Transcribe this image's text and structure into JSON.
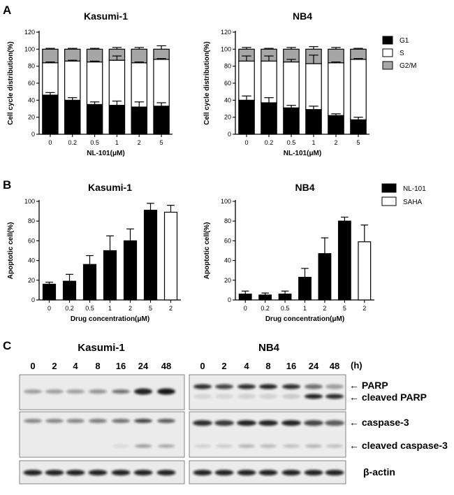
{
  "panels": {
    "a": "A",
    "b": "B",
    "c": "C"
  },
  "chart_data": [
    {
      "type": "bar",
      "stacked": true,
      "title": "Kasumi-1",
      "xlabel": "NL-101(μM)",
      "ylabel": "Cell cycle distribution(%)",
      "categories": [
        "0",
        "0.2",
        "0.5",
        "1",
        "2",
        "5"
      ],
      "ylim": [
        0,
        120
      ],
      "yticks": [
        "0",
        "20",
        "40",
        "60",
        "80",
        "100",
        "120"
      ],
      "series": [
        {
          "name": "G1",
          "values": [
            46,
            40,
            35,
            34,
            32,
            33
          ],
          "err": [
            3,
            3,
            3,
            5,
            6,
            4
          ],
          "color": "#000000"
        },
        {
          "name": "S",
          "values": [
            38,
            46,
            50,
            53,
            52,
            55
          ],
          "err": [
            1,
            1,
            1,
            5,
            1,
            1
          ],
          "color": "#ffffff"
        },
        {
          "name": "G2/M",
          "values": [
            16,
            14,
            15,
            13,
            16,
            12
          ],
          "err": [
            1,
            1,
            1,
            2,
            2,
            4
          ],
          "color": "#a6a6a6"
        }
      ]
    },
    {
      "type": "bar",
      "stacked": true,
      "title": "NB4",
      "xlabel": "NL-101(μM)",
      "ylabel": "Cell cycle distribution(%)",
      "categories": [
        "0",
        "0.2",
        "0.5",
        "1",
        "2",
        "5"
      ],
      "ylim": [
        0,
        120
      ],
      "yticks": [
        "0",
        "20",
        "40",
        "60",
        "80",
        "100",
        "120"
      ],
      "legend": "right",
      "series": [
        {
          "name": "G1",
          "values": [
            40,
            37,
            31,
            29,
            22,
            17
          ],
          "err": [
            5,
            6,
            3,
            4,
            2,
            3
          ],
          "color": "#000000"
        },
        {
          "name": "S",
          "values": [
            46,
            49,
            54,
            54,
            62,
            71
          ],
          "err": [
            6,
            6,
            3,
            10,
            1,
            1
          ],
          "color": "#ffffff"
        },
        {
          "name": "G2/M",
          "values": [
            14,
            14,
            15,
            17,
            16,
            12
          ],
          "err": [
            2,
            1,
            2,
            3,
            2,
            1
          ],
          "color": "#a6a6a6"
        }
      ]
    },
    {
      "type": "bar",
      "title": "Kasumi-1",
      "xlabel": "Drug concentration(μM)",
      "ylabel": "Apoptotic cell(%)",
      "categories": [
        "0",
        "0.2",
        "0.5",
        "1",
        "2",
        "5",
        "2"
      ],
      "ylim": [
        0,
        100
      ],
      "yticks": [
        "0",
        "20",
        "40",
        "60",
        "80",
        "100"
      ],
      "values": [
        16,
        19,
        36,
        50,
        60,
        91,
        89
      ],
      "err": [
        2,
        7,
        9,
        15,
        12,
        7,
        7
      ],
      "fills": [
        "#000000",
        "#000000",
        "#000000",
        "#000000",
        "#000000",
        "#000000",
        "#ffffff"
      ]
    },
    {
      "type": "bar",
      "title": "NB4",
      "xlabel": "Drug concentration(μM)",
      "ylabel": "Apoptotic cell(%)",
      "categories": [
        "0",
        "0.2",
        "0.5",
        "1",
        "2",
        "5",
        "2"
      ],
      "ylim": [
        0,
        100
      ],
      "yticks": [
        "0",
        "20",
        "40",
        "60",
        "80",
        "100"
      ],
      "values": [
        6,
        5,
        6,
        23,
        47,
        80,
        59
      ],
      "err": [
        3,
        2,
        3,
        9,
        16,
        4,
        17
      ],
      "fills": [
        "#000000",
        "#000000",
        "#000000",
        "#000000",
        "#000000",
        "#000000",
        "#ffffff"
      ],
      "legend": "right",
      "legend_entries": [
        {
          "name": "NL-101",
          "color": "#000000"
        },
        {
          "name": "SAHA",
          "color": "#ffffff"
        }
      ]
    }
  ],
  "western_blot": {
    "cell_lines": [
      "Kasumi-1",
      "NB4"
    ],
    "timepoints": [
      "0",
      "2",
      "4",
      "8",
      "16",
      "24",
      "48"
    ],
    "unit": "(h)",
    "labels": {
      "parp": "← PARP",
      "cleaved_parp": "← cleaved PARP",
      "caspase3": "← caspase-3",
      "cleaved_caspase3": "← cleaved caspase-3",
      "actin": "β-actin"
    }
  }
}
